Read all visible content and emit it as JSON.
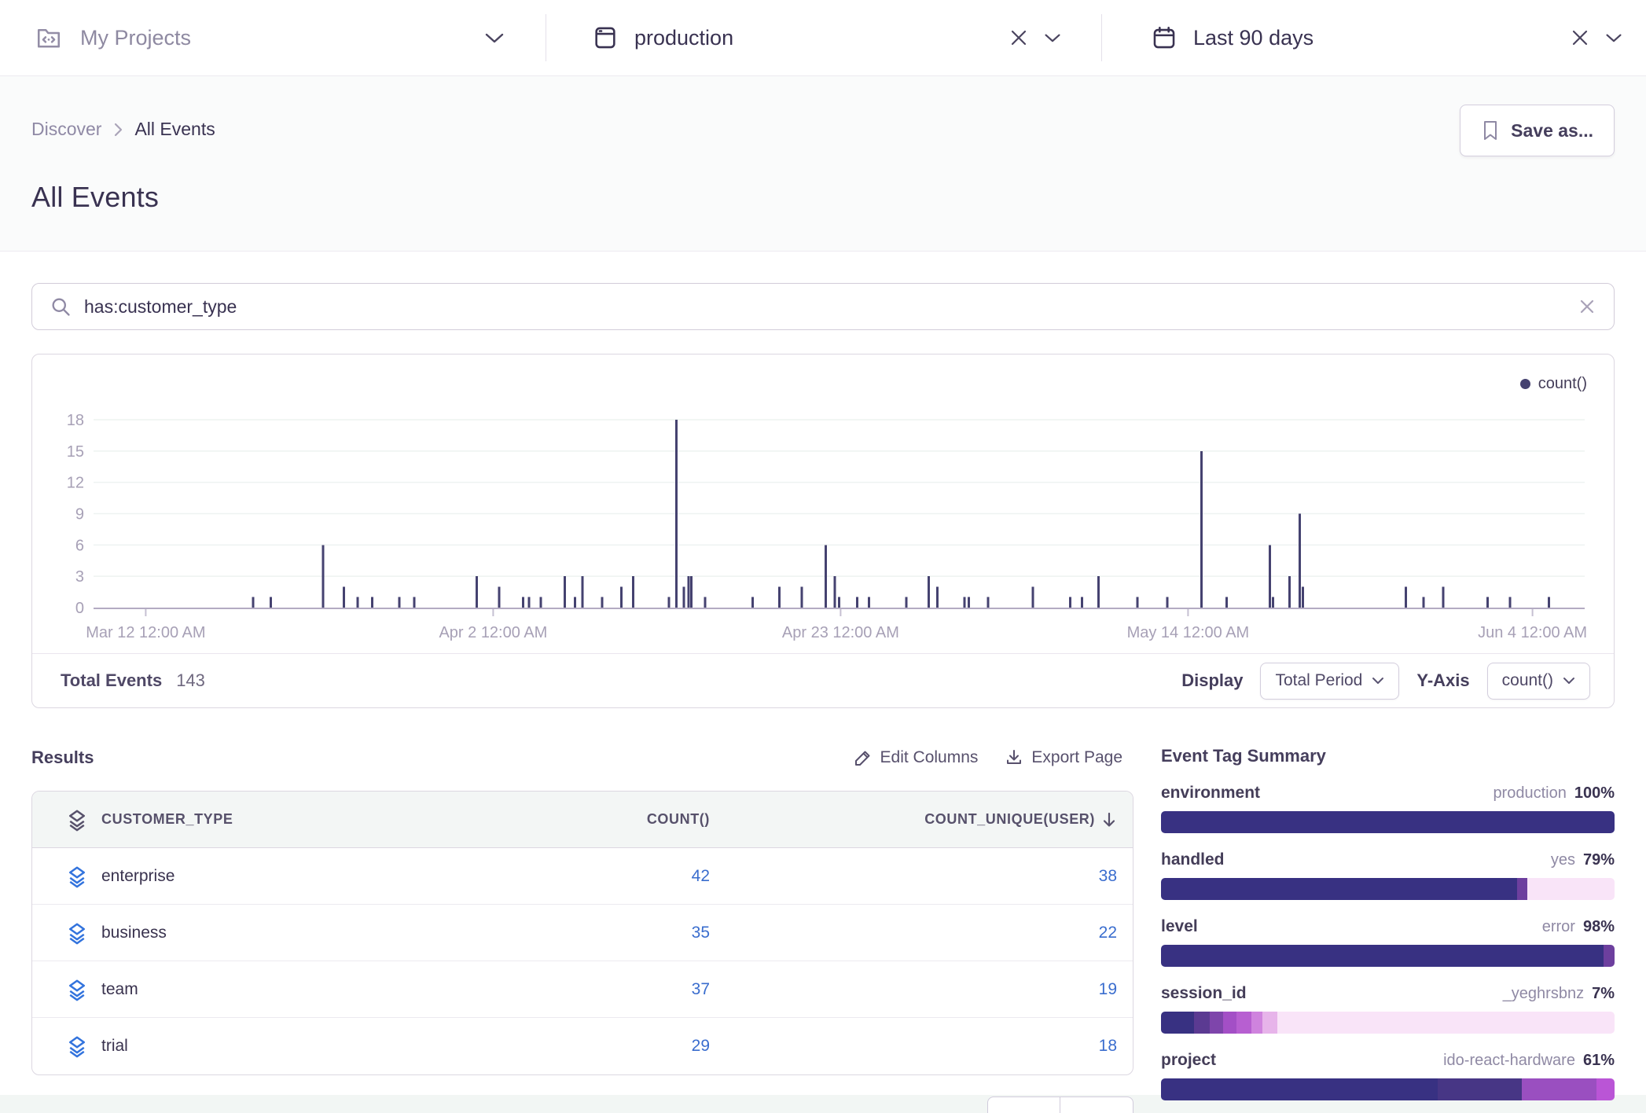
{
  "topbar": {
    "project_selector": {
      "label": "My Projects"
    },
    "env_filter": {
      "label": "production"
    },
    "date_filter": {
      "label": "Last 90 days"
    }
  },
  "header": {
    "breadcrumb": {
      "parent": "Discover",
      "current": "All Events"
    },
    "title": "All Events",
    "save_button": "Save as..."
  },
  "search": {
    "query": "has:customer_type"
  },
  "chart_data": {
    "type": "bar",
    "title": "",
    "xlabel": "",
    "ylabel": "",
    "x_axis_type": "time",
    "grid": true,
    "legend_position": "top-right",
    "y_ticks": [
      0,
      3,
      6,
      9,
      12,
      15,
      18
    ],
    "ylim": [
      0,
      19
    ],
    "x_ticks": [
      {
        "pos": 0.035,
        "label": "Mar 12 12:00 AM"
      },
      {
        "pos": 0.268,
        "label": "Apr 2 12:00 AM"
      },
      {
        "pos": 0.501,
        "label": "Apr 23 12:00 AM"
      },
      {
        "pos": 0.734,
        "label": "May 14 12:00 AM"
      },
      {
        "pos": 0.965,
        "label": "Jun 4 12:00 AM"
      }
    ],
    "series": [
      {
        "name": "count()",
        "color": "#454270",
        "points": [
          [
            0.107,
            1
          ],
          [
            0.119,
            1
          ],
          [
            0.154,
            6
          ],
          [
            0.168,
            2
          ],
          [
            0.177,
            1
          ],
          [
            0.187,
            1
          ],
          [
            0.205,
            1
          ],
          [
            0.215,
            1
          ],
          [
            0.257,
            3
          ],
          [
            0.272,
            2
          ],
          [
            0.288,
            1
          ],
          [
            0.292,
            1
          ],
          [
            0.3,
            1
          ],
          [
            0.316,
            3
          ],
          [
            0.323,
            1
          ],
          [
            0.328,
            3
          ],
          [
            0.341,
            1
          ],
          [
            0.354,
            2
          ],
          [
            0.362,
            3
          ],
          [
            0.386,
            1
          ],
          [
            0.391,
            18
          ],
          [
            0.396,
            2
          ],
          [
            0.399,
            3
          ],
          [
            0.401,
            3
          ],
          [
            0.41,
            1
          ],
          [
            0.442,
            1
          ],
          [
            0.46,
            2
          ],
          [
            0.475,
            2
          ],
          [
            0.491,
            6
          ],
          [
            0.497,
            3
          ],
          [
            0.5,
            1
          ],
          [
            0.512,
            1
          ],
          [
            0.52,
            1
          ],
          [
            0.545,
            1
          ],
          [
            0.56,
            3
          ],
          [
            0.566,
            2
          ],
          [
            0.584,
            1
          ],
          [
            0.587,
            1
          ],
          [
            0.6,
            1
          ],
          [
            0.63,
            2
          ],
          [
            0.655,
            1
          ],
          [
            0.663,
            1
          ],
          [
            0.674,
            3
          ],
          [
            0.7,
            1
          ],
          [
            0.72,
            1
          ],
          [
            0.743,
            15
          ],
          [
            0.76,
            1
          ],
          [
            0.789,
            6
          ],
          [
            0.791,
            1
          ],
          [
            0.802,
            3
          ],
          [
            0.809,
            9
          ],
          [
            0.811,
            2
          ],
          [
            0.88,
            2
          ],
          [
            0.892,
            1
          ],
          [
            0.905,
            2
          ],
          [
            0.935,
            1
          ],
          [
            0.95,
            1
          ],
          [
            0.976,
            1
          ]
        ]
      }
    ]
  },
  "chart_footer": {
    "total_label": "Total Events",
    "total_value": "143",
    "display_label": "Display",
    "display_value": "Total Period",
    "yaxis_label": "Y-Axis",
    "yaxis_value": "count()"
  },
  "results": {
    "heading": "Results",
    "edit_columns": "Edit Columns",
    "export_page": "Export Page",
    "table": {
      "columns": [
        "CUSTOMER_TYPE",
        "COUNT()",
        "COUNT_UNIQUE(USER)"
      ],
      "sorted_column": "COUNT_UNIQUE(USER)",
      "sort_direction": "desc",
      "rows": [
        {
          "label": "enterprise",
          "count": "42",
          "count_unique": "38"
        },
        {
          "label": "business",
          "count": "35",
          "count_unique": "22"
        },
        {
          "label": "team",
          "count": "37",
          "count_unique": "19"
        },
        {
          "label": "trial",
          "count": "29",
          "count_unique": "18"
        }
      ]
    }
  },
  "tag_summary": {
    "heading": "Event Tag Summary",
    "tags": [
      {
        "key": "environment",
        "value": "production",
        "percent": "100%",
        "segments": [
          [
            "#383182",
            100
          ]
        ]
      },
      {
        "key": "handled",
        "value": "yes",
        "percent": "79%",
        "segments": [
          [
            "#383182",
            78.5
          ],
          [
            "#6d3f9e",
            2.3
          ],
          [
            "#f9e4f8",
            19.2
          ]
        ]
      },
      {
        "key": "level",
        "value": "error",
        "percent": "98%",
        "segments": [
          [
            "#383182",
            97.6
          ],
          [
            "#6d3f9e",
            2.4
          ]
        ]
      },
      {
        "key": "session_id",
        "value": "_yeghrsbnz",
        "percent": "7%",
        "segments": [
          [
            "#383182",
            7.3
          ],
          [
            "#5b3a92",
            3.5
          ],
          [
            "#7e45ab",
            2.9
          ],
          [
            "#a34fc6",
            3.0
          ],
          [
            "#b75fd1",
            3.2
          ],
          [
            "#cf83de",
            2.4
          ],
          [
            "#e7b4ea",
            3.4
          ],
          [
            "#f9e4f8",
            74.3
          ]
        ]
      },
      {
        "key": "project",
        "value": "ido-react-hardware",
        "percent": "61%",
        "segments": [
          [
            "#383182",
            61
          ],
          [
            "#473685",
            18.5
          ],
          [
            "#9a4fc0",
            16.5
          ],
          [
            "#ba55d6",
            4
          ]
        ]
      }
    ]
  },
  "colors": {
    "series_bar": "#454270",
    "tag_dark": "#383182",
    "link_blue": "#3a6dce",
    "row_icon_blue": "#3273dd"
  }
}
